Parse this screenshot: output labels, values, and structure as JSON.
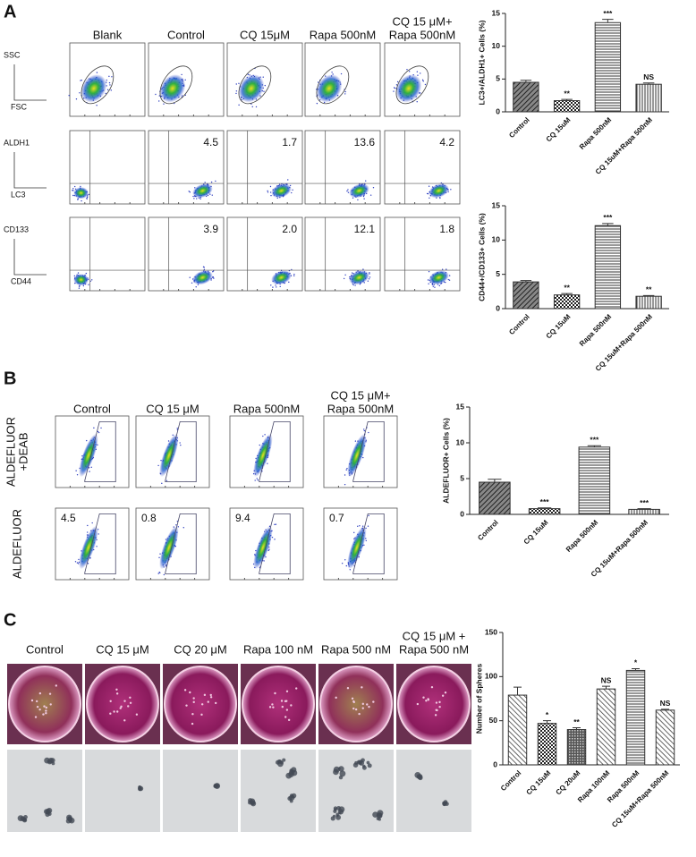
{
  "panel_labels": [
    "A",
    "B",
    "C"
  ],
  "panel_a": {
    "columns": [
      [
        "Blank"
      ],
      [
        "Control"
      ],
      [
        "CQ 15μM"
      ],
      [
        "Rapa 500nM"
      ],
      [
        "CQ 15 μM+",
        "Rapa 500nM"
      ]
    ],
    "row_labels": [
      [
        "SSC",
        "FSC"
      ],
      [
        "ALDH1",
        "LC3"
      ],
      [
        "CD133",
        "CD44"
      ]
    ],
    "quadrant_values": [
      [
        "4.5",
        "1.7",
        "13.6",
        "4.2"
      ],
      [
        "3.9",
        "2.0",
        "12.1",
        "1.8"
      ]
    ]
  },
  "panel_b": {
    "columns": [
      [
        "Control"
      ],
      [
        "CQ 15 μM"
      ],
      [
        "Rapa 500nM"
      ],
      [
        "CQ 15 μM+",
        "Rapa 500nM"
      ]
    ],
    "row_labels": [
      [
        "ALDEFLUOR",
        "+DEAB"
      ],
      [
        "ALDEFLUOR"
      ]
    ],
    "gate_values": [
      "4.5",
      "0.8",
      "9.4",
      "0.7"
    ]
  },
  "panel_c": {
    "columns": [
      [
        "Control"
      ],
      [
        "CQ 15 μM"
      ],
      [
        "CQ 20 μM"
      ],
      [
        "Rapa 100 nM"
      ],
      [
        "Rapa 500 nM"
      ],
      [
        "CQ 15 μM +",
        "Rapa 500 nM"
      ]
    ]
  },
  "chart_data": [
    {
      "type": "bar",
      "y_label": "LC3+/ALDH1+ Cells (%)",
      "categories": [
        "Control",
        "CQ 15uM",
        "Rapa 500nM",
        "CQ 15uM+Rapa 500nM"
      ],
      "values": [
        4.5,
        1.7,
        13.6,
        4.2
      ],
      "errors": [
        0.3,
        0.2,
        0.5,
        0.2
      ],
      "annotations": [
        null,
        "**",
        "***",
        "NS"
      ],
      "ylim": [
        0,
        15
      ],
      "yticks": [
        0,
        5,
        10,
        15
      ],
      "color": "#333333"
    },
    {
      "type": "bar",
      "y_label": "CD44+/CD133+ Cells (%)",
      "categories": [
        "Control",
        "CQ 15uM",
        "Rapa 500nM",
        "CQ 15uM+Rapa 500nM"
      ],
      "values": [
        3.9,
        2.0,
        12.1,
        1.8
      ],
      "errors": [
        0.2,
        0.2,
        0.3,
        0.1
      ],
      "annotations": [
        null,
        "**",
        "***",
        "**"
      ],
      "ylim": [
        0,
        15
      ],
      "yticks": [
        0,
        5,
        10,
        15
      ],
      "color": "#333333"
    },
    {
      "type": "bar",
      "y_label": "ALDEFLUOR+ Cells (%)",
      "categories": [
        "Control",
        "CQ 15uM",
        "Rapa 500nM",
        "CQ 15uM+Rapa 500nM"
      ],
      "values": [
        4.5,
        0.8,
        9.4,
        0.7
      ],
      "errors": [
        0.4,
        0.1,
        0.2,
        0.1
      ],
      "annotations": [
        null,
        "***",
        "***",
        "***"
      ],
      "ylim": [
        0,
        15
      ],
      "yticks": [
        0,
        5,
        10,
        15
      ],
      "color": "#333333"
    },
    {
      "type": "bar",
      "y_label": "Number of Spheres",
      "categories": [
        "Control",
        "CQ 15uM",
        "CQ 20uM",
        "Rapa 100nM",
        "Rapa 500nM",
        "CQ 15uM+Rapa 500nM"
      ],
      "values": [
        79,
        47,
        40,
        86,
        107,
        62
      ],
      "errors": [
        9,
        3,
        2,
        3,
        2,
        1
      ],
      "annotations": [
        null,
        "*",
        "**",
        "NS",
        "*",
        "NS"
      ],
      "ylim": [
        0,
        150
      ],
      "yticks": [
        0,
        50,
        100,
        150
      ],
      "color": "#333333"
    }
  ]
}
